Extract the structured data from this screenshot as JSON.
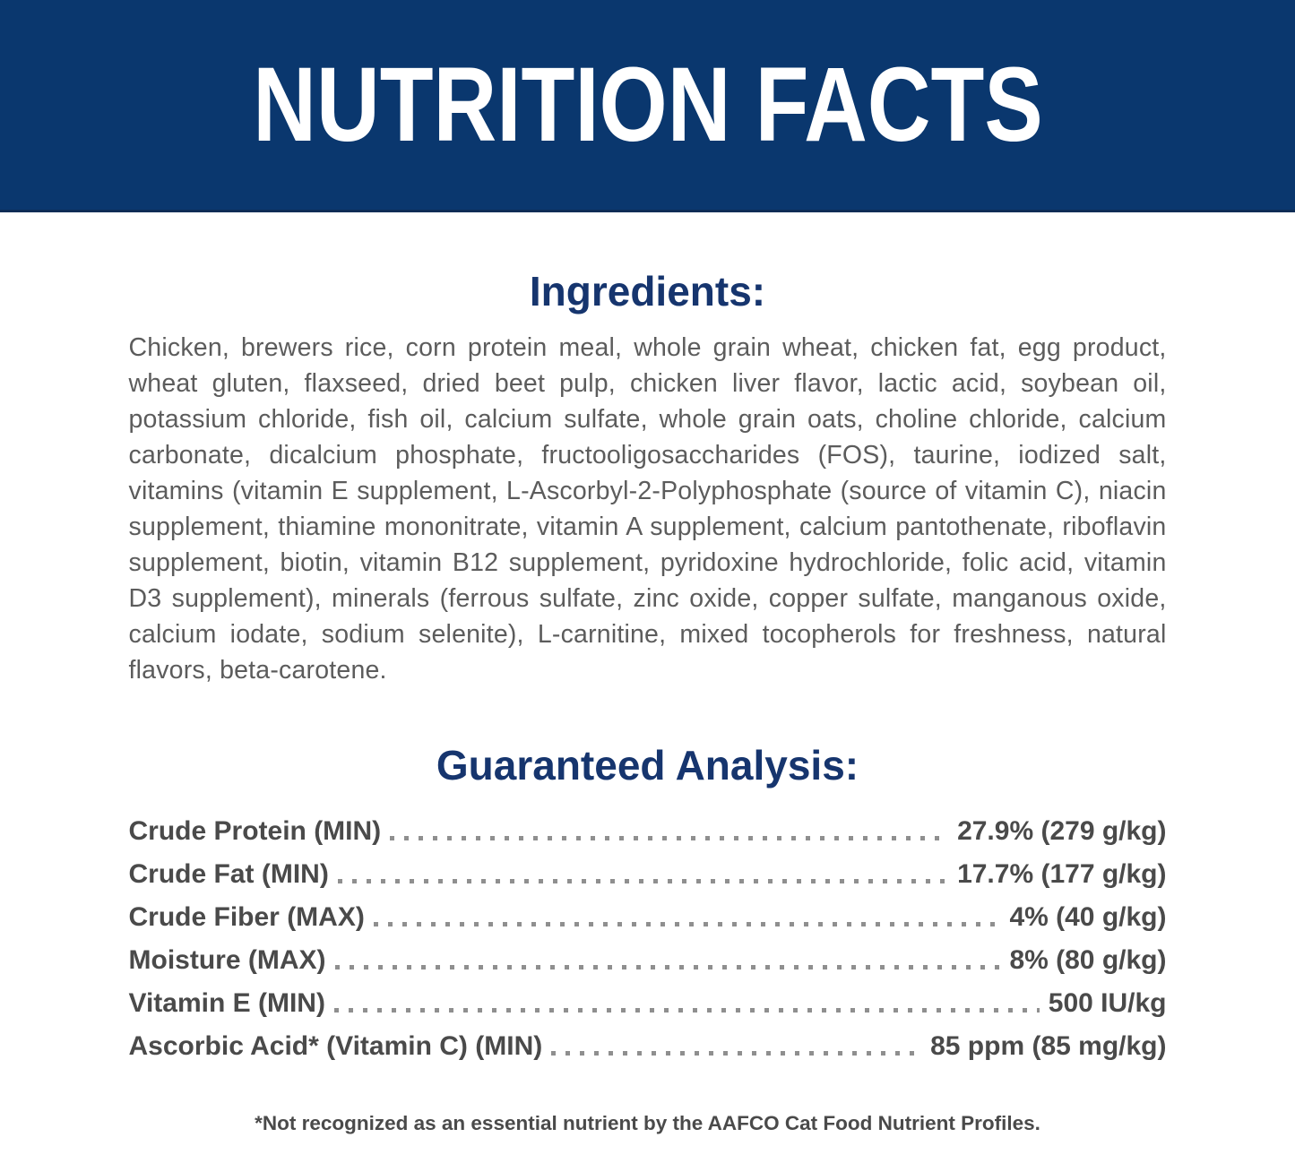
{
  "banner": {
    "title": "NUTRITION FACTS"
  },
  "ingredients": {
    "heading": "Ingredients:",
    "text": "Chicken, brewers rice, corn protein meal, whole grain wheat, chicken fat, egg product, wheat gluten, flaxseed, dried beet pulp, chicken liver flavor, lactic acid, soybean oil, potassium chloride, fish oil, calcium sulfate, whole grain oats, choline chloride, calcium carbonate, dicalcium phosphate, fructooligosaccharides (FOS), taurine, iodized salt, vitamins (vitamin E supplement, L-Ascorbyl-2-Polyphosphate (source of vitamin C), niacin supplement, thiamine mononitrate, vitamin A supplement, calcium pantothenate, riboflavin supplement, biotin, vitamin B12 supplement, pyridoxine hydrochloride, folic acid, vitamin D3 supplement), minerals (ferrous sulfate, zinc oxide, copper sulfate, manganous oxide, calcium iodate, sodium selenite), L-carnitine, mixed tocopherols for freshness, natural flavors, beta-carotene."
  },
  "guaranteed_analysis": {
    "heading": "Guaranteed Analysis:",
    "rows": [
      {
        "label": "Crude Protein (MIN)",
        "value": "27.9% (279 g/kg)"
      },
      {
        "label": "Crude Fat (MIN)",
        "value": "17.7% (177 g/kg)"
      },
      {
        "label": "Crude Fiber (MAX)",
        "value": "4% (40 g/kg)"
      },
      {
        "label": "Moisture (MAX)",
        "value": "8% (80 g/kg)"
      },
      {
        "label": "Vitamin E (MIN)",
        "value": "500 IU/kg"
      },
      {
        "label": "Ascorbic Acid* (Vitamin C) (MIN)",
        "value": "85 ppm (85 mg/kg)"
      }
    ]
  },
  "footnote": "*Not recognized as an essential nutrient by the AAFCO Cat Food Nutrient Profiles.",
  "colors": {
    "banner_bg": "#0a376e",
    "banner_edge": "#0e2d56",
    "banner_text": "#ffffff",
    "heading": "#16356e",
    "body_text": "#5c5c5c",
    "row_text": "#4a4a4a",
    "dots": "#8f8f8f"
  }
}
